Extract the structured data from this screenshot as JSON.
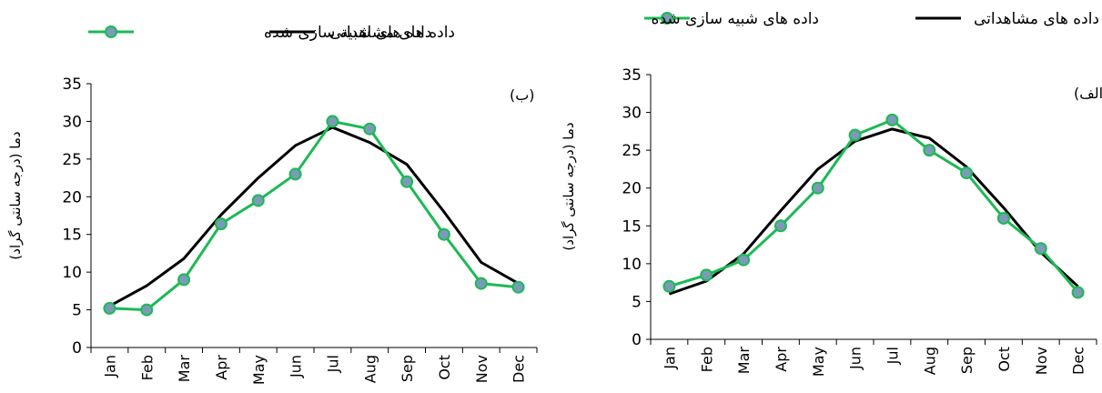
{
  "legend": {
    "simulated_label": "داده های شبیه سازی شده",
    "observed_label": "داده های مشاهداتی"
  },
  "colors": {
    "simulated_line": "#1db954",
    "simulated_marker_fill": "#7a9bb8",
    "observed_line": "#000000",
    "axis": "#000000"
  },
  "chart_data": [
    {
      "type": "line",
      "panel_label": "(ب)",
      "ylabel": "دما (درجه سانتی گراد)",
      "categories": [
        "Jan",
        "Feb",
        "Mar",
        "Apr",
        "May",
        "Jun",
        "Jul",
        "Aug",
        "Sep",
        "Oct",
        "Nov",
        "Dec"
      ],
      "ylim": [
        0,
        35
      ],
      "yticks": [
        0,
        5,
        10,
        15,
        20,
        25,
        30,
        35
      ],
      "grid": false,
      "legend_position": "top",
      "series": [
        {
          "name": "داده های شبیه سازی شده",
          "values": [
            5.2,
            5.0,
            9.0,
            16.4,
            19.5,
            23.0,
            30.0,
            29.0,
            22.0,
            15.0,
            8.5,
            8.0
          ]
        },
        {
          "name": "داده های مشاهداتی",
          "values": [
            5.5,
            8.2,
            11.8,
            17.6,
            22.5,
            26.8,
            29.2,
            27.2,
            24.3,
            18.0,
            11.3,
            8.5
          ]
        }
      ]
    },
    {
      "type": "line",
      "panel_label": "(الف)",
      "ylabel": "دما (درجه سانتی گراد)",
      "categories": [
        "Jan",
        "Feb",
        "Mar",
        "Apr",
        "May",
        "Jun",
        "Jul",
        "Aug",
        "Sep",
        "Oct",
        "Nov",
        "Dec"
      ],
      "ylim": [
        0,
        35
      ],
      "yticks": [
        0,
        5,
        10,
        15,
        20,
        25,
        30,
        35
      ],
      "grid": false,
      "legend_position": "top",
      "series": [
        {
          "name": "داده های شبیه سازی شده",
          "values": [
            7.0,
            8.5,
            10.5,
            15.0,
            20.0,
            27.0,
            29.0,
            25.0,
            22.0,
            16.0,
            12.0,
            6.2
          ]
        },
        {
          "name": "داده های مشاهداتی",
          "values": [
            6.0,
            7.7,
            11.3,
            17.0,
            22.5,
            26.2,
            27.8,
            26.6,
            22.8,
            17.4,
            11.5,
            7.0
          ]
        }
      ]
    }
  ]
}
